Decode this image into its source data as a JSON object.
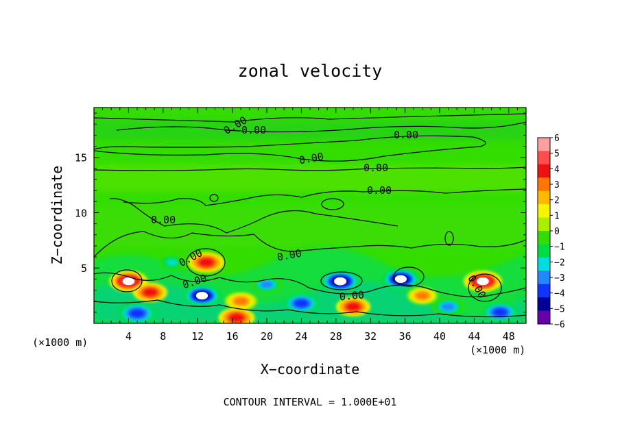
{
  "chart_data": {
    "type": "heatmap",
    "title": "zonal velocity",
    "xlabel": "X−coordinate",
    "ylabel": "Z−coordinate",
    "x_unit_left": "(×1000 m)",
    "x_unit_right": "(×1000 m)",
    "xlim": [
      0,
      50
    ],
    "ylim": [
      0,
      19.5
    ],
    "x_ticks": [
      "4",
      "8",
      "12",
      "16",
      "20",
      "24",
      "28",
      "32",
      "36",
      "40",
      "44",
      "48"
    ],
    "y_ticks": [
      "5",
      "10",
      "15"
    ],
    "colorbar": {
      "min": -6,
      "max": 6,
      "labels": [
        "6",
        "5",
        "4",
        "3",
        "2",
        "1",
        "0",
        "−1",
        "−2",
        "−3",
        "−4",
        "−5",
        "−6"
      ],
      "colors": [
        "#ff9f9f",
        "#ff4d4d",
        "#ee1111",
        "#ff7700",
        "#ffbb00",
        "#f5f500",
        "#aaee00",
        "#33dd00",
        "#00dd44",
        "#00dddd",
        "#2288ff",
        "#1133ff",
        "#000099",
        "#6600aa"
      ]
    },
    "contour_label": "0.00",
    "features": [
      {
        "x": 4,
        "z": 3.8,
        "value": 5
      },
      {
        "x": 13,
        "z": 5.5,
        "value": 4.5
      },
      {
        "x": 12.5,
        "z": 2.5,
        "value": -5
      },
      {
        "x": 6.5,
        "z": 2.8,
        "value": 4
      },
      {
        "x": 28.5,
        "z": 3.8,
        "value": -5.5
      },
      {
        "x": 35.5,
        "z": 4.0,
        "value": -5
      },
      {
        "x": 45,
        "z": 3.8,
        "value": 5
      },
      {
        "x": 17,
        "z": 2.0,
        "value": 3.5
      },
      {
        "x": 24,
        "z": 1.8,
        "value": -4
      },
      {
        "x": 30,
        "z": 1.5,
        "value": 4
      },
      {
        "x": 5,
        "z": 0.9,
        "value": -4.5
      },
      {
        "x": 16.5,
        "z": 0.5,
        "value": 4.5
      },
      {
        "x": 20,
        "z": 3.5,
        "value": -3
      },
      {
        "x": 41,
        "z": 1.5,
        "value": -3.5
      },
      {
        "x": 38,
        "z": 2.5,
        "value": 3
      },
      {
        "x": 47,
        "z": 1.0,
        "value": -4
      },
      {
        "x": 9,
        "z": 5.5,
        "value": -2
      }
    ],
    "footer": "CONTOUR INTERVAL = 1.000E+01"
  }
}
